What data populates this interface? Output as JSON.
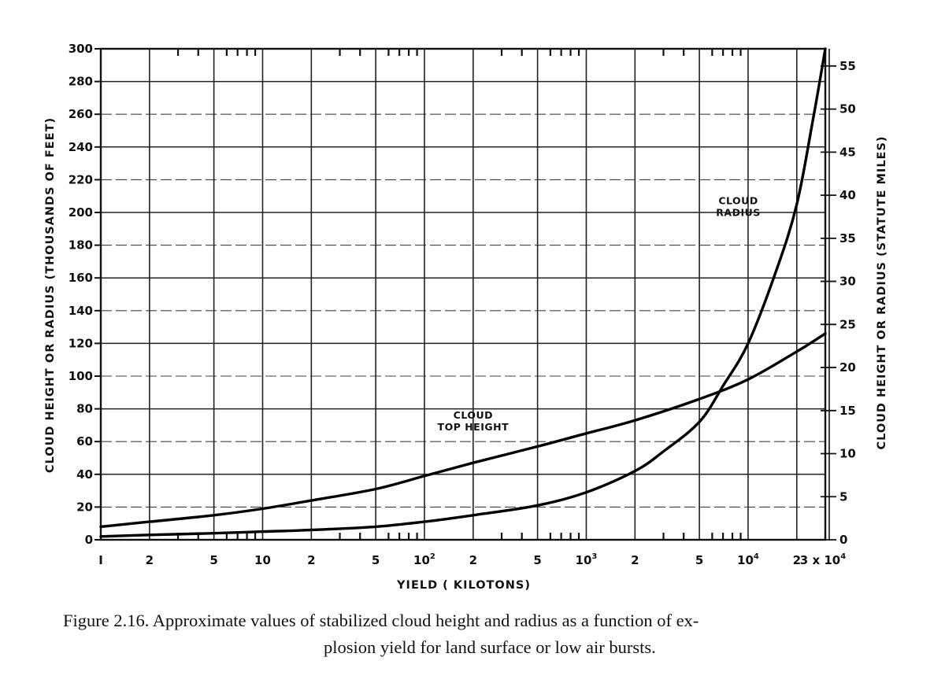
{
  "chart_data": {
    "type": "line",
    "xscale": "log",
    "xlim": [
      1,
      30000
    ],
    "ylim": [
      0,
      300
    ],
    "y2lim": [
      0,
      57
    ],
    "xlabel": "YIELD ( KILOTONS)",
    "ylabel": "CLOUD HEIGHT OR RADIUS (THOUSANDS OF FEET)",
    "y2label": "CLOUD HEIGHT OR RADIUS (STATUTE MILES)",
    "x_tick_labels": [
      {
        "value": 1,
        "label": "I"
      },
      {
        "value": 2,
        "label": "2"
      },
      {
        "value": 5,
        "label": "5"
      },
      {
        "value": 10,
        "label": "10"
      },
      {
        "value": 20,
        "label": "2"
      },
      {
        "value": 50,
        "label": "5"
      },
      {
        "value": 100,
        "label": "10",
        "sup": "2"
      },
      {
        "value": 200,
        "label": "2"
      },
      {
        "value": 500,
        "label": "5"
      },
      {
        "value": 1000,
        "label": "10",
        "sup": "3"
      },
      {
        "value": 2000,
        "label": "2"
      },
      {
        "value": 5000,
        "label": "5"
      },
      {
        "value": 10000,
        "label": "10",
        "sup": "4"
      },
      {
        "value": 20000,
        "label": "2"
      },
      {
        "value": 30000,
        "label": "3 x 10",
        "sup": "4"
      }
    ],
    "y_ticks": [
      0,
      20,
      40,
      60,
      80,
      100,
      120,
      140,
      160,
      180,
      200,
      220,
      240,
      260,
      280,
      300
    ],
    "y2_ticks": [
      0,
      5,
      10,
      15,
      20,
      25,
      30,
      35,
      40,
      45,
      50,
      55
    ],
    "grid": true,
    "series": [
      {
        "name": "CLOUD TOP HEIGHT",
        "label_lines": [
          "CLOUD",
          "TOP HEIGHT"
        ],
        "x": [
          1,
          2,
          5,
          10,
          20,
          50,
          100,
          200,
          500,
          1000,
          2000,
          5000,
          10000,
          20000,
          30000
        ],
        "y": [
          8,
          11,
          15,
          19,
          24,
          31,
          39,
          47,
          57,
          65,
          73,
          86,
          98,
          115,
          126
        ]
      },
      {
        "name": "CLOUD RADIUS",
        "label_lines": [
          "CLOUD",
          "RADIUS"
        ],
        "x": [
          1,
          2,
          5,
          10,
          20,
          50,
          100,
          200,
          500,
          1000,
          2000,
          3000,
          5000,
          7000,
          10000,
          15000,
          20000,
          25000,
          30000
        ],
        "y": [
          2,
          3,
          4,
          5,
          6,
          8,
          11,
          15,
          21,
          29,
          42,
          54,
          72,
          94,
          120,
          165,
          205,
          255,
          300
        ]
      }
    ]
  },
  "caption": {
    "line1": "Figure 2.16.   Approximate values of stabilized cloud height and radius as a function of ex-",
    "line2": "plosion yield for land surface or low air bursts."
  }
}
